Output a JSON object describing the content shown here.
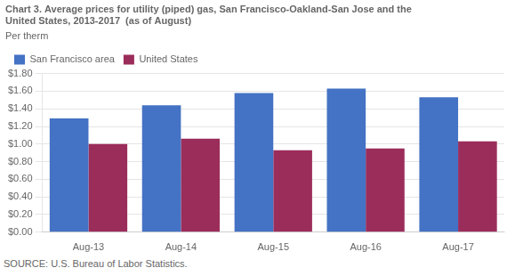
{
  "chart_data": {
    "type": "bar",
    "title": [
      "Chart 3. Average prices for utility (piped) gas, San Francisco-Oakland-San Jose and the",
      "United States, 2013-2017  (as of August)"
    ],
    "subtitle": "Per therm",
    "annotations": [
      "SOURCE: U.S. Bureau of Labor Statistics."
    ],
    "categories": [
      "Aug-13",
      "Aug-14",
      "Aug-15",
      "Aug-16",
      "Aug-17"
    ],
    "series": [
      {
        "name": "San Francisco area",
        "color": "#4472C4",
        "values": [
          1.29,
          1.44,
          1.58,
          1.63,
          1.53
        ]
      },
      {
        "name": "United States",
        "color": "#9B2D5B",
        "values": [
          1.0,
          1.06,
          0.93,
          0.95,
          1.03
        ]
      }
    ],
    "ylim": [
      0.0,
      1.8
    ],
    "yticks": [
      {
        "value": 0.0,
        "label": "$0.00"
      },
      {
        "value": 0.2,
        "label": "$0.20"
      },
      {
        "value": 0.4,
        "label": "$0.40"
      },
      {
        "value": 0.6,
        "label": "$0.60"
      },
      {
        "value": 0.8,
        "label": "$0.80"
      },
      {
        "value": 1.0,
        "label": "$1.00"
      },
      {
        "value": 1.2,
        "label": "$1.20"
      },
      {
        "value": 1.4,
        "label": "$1.40"
      },
      {
        "value": 1.6,
        "label": "$1.60"
      },
      {
        "value": 1.8,
        "label": "$1.80"
      }
    ],
    "grid": true,
    "legend": "upper left"
  }
}
